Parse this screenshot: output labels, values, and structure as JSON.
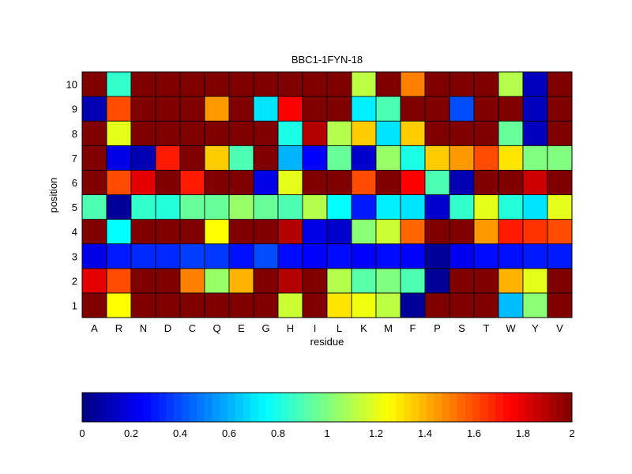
{
  "chart_data": {
    "type": "heatmap",
    "title": "BBC1-1FYN-18",
    "xlabel": "residue",
    "ylabel": "position",
    "x_categories": [
      "A",
      "R",
      "N",
      "D",
      "C",
      "Q",
      "E",
      "G",
      "H",
      "I",
      "L",
      "K",
      "M",
      "F",
      "P",
      "S",
      "T",
      "W",
      "Y",
      "V"
    ],
    "y_categories": [
      "1",
      "2",
      "3",
      "4",
      "5",
      "6",
      "7",
      "8",
      "9",
      "10"
    ],
    "colormap": "jet",
    "clim": [
      0,
      2
    ],
    "colorbar": {
      "orientation": "horizontal",
      "ticks": [
        "0",
        "0.2",
        "0.4",
        "0.6",
        "0.8",
        "1",
        "1.2",
        "1.4",
        "1.6",
        "1.8",
        "2"
      ]
    },
    "values": [
      [
        2.0,
        1.25,
        2.0,
        2.0,
        2.0,
        2.0,
        2.0,
        2.0,
        1.15,
        2.0,
        1.3,
        1.22,
        1.12,
        0.05,
        2.0,
        2.0,
        2.0,
        0.62,
        1.02,
        2.0
      ],
      [
        1.8,
        1.6,
        2.0,
        2.0,
        1.5,
        1.05,
        1.4,
        2.0,
        1.9,
        2.0,
        1.1,
        0.92,
        1.0,
        0.9,
        0.05,
        2.0,
        2.0,
        1.4,
        1.2,
        2.0
      ],
      [
        0.2,
        0.3,
        0.33,
        0.33,
        0.37,
        0.36,
        0.28,
        0.4,
        0.27,
        0.25,
        0.27,
        0.25,
        0.27,
        0.25,
        0.05,
        0.22,
        0.27,
        0.28,
        0.3,
        0.3
      ],
      [
        2.0,
        0.75,
        2.0,
        2.0,
        2.0,
        1.25,
        2.0,
        2.0,
        1.9,
        0.2,
        0.15,
        1.02,
        1.15,
        1.55,
        2.0,
        2.0,
        1.45,
        1.7,
        1.65,
        1.6
      ],
      [
        0.9,
        0.05,
        0.85,
        0.82,
        0.95,
        0.95,
        1.05,
        0.95,
        0.9,
        1.1,
        0.75,
        0.3,
        0.72,
        0.7,
        0.15,
        0.85,
        1.2,
        0.82,
        0.7,
        1.2
      ],
      [
        2.0,
        1.6,
        1.8,
        2.0,
        1.7,
        2.0,
        2.0,
        0.2,
        1.2,
        2.0,
        2.0,
        1.6,
        2.0,
        1.75,
        0.9,
        0.1,
        2.0,
        2.0,
        1.85,
        2.0
      ],
      [
        2.0,
        0.2,
        0.1,
        1.7,
        2.0,
        1.35,
        0.9,
        2.0,
        0.6,
        0.25,
        0.95,
        0.15,
        1.05,
        0.8,
        1.35,
        1.45,
        1.6,
        1.3,
        1.0,
        1.0
      ],
      [
        2.0,
        1.2,
        2.0,
        2.0,
        2.0,
        2.0,
        2.0,
        2.0,
        0.8,
        1.9,
        1.1,
        1.35,
        0.7,
        1.35,
        2.0,
        2.0,
        2.0,
        0.95,
        0.12,
        2.0
      ],
      [
        0.1,
        1.6,
        2.0,
        2.0,
        2.0,
        1.45,
        2.0,
        0.7,
        1.75,
        2.0,
        2.0,
        0.72,
        0.9,
        2.0,
        2.0,
        0.4,
        2.0,
        2.0,
        0.12,
        2.0
      ],
      [
        2.0,
        0.85,
        2.0,
        2.0,
        2.0,
        2.0,
        2.0,
        2.0,
        2.0,
        2.0,
        2.0,
        1.12,
        2.0,
        1.5,
        2.0,
        2.0,
        2.0,
        1.1,
        0.12,
        2.0
      ]
    ]
  }
}
